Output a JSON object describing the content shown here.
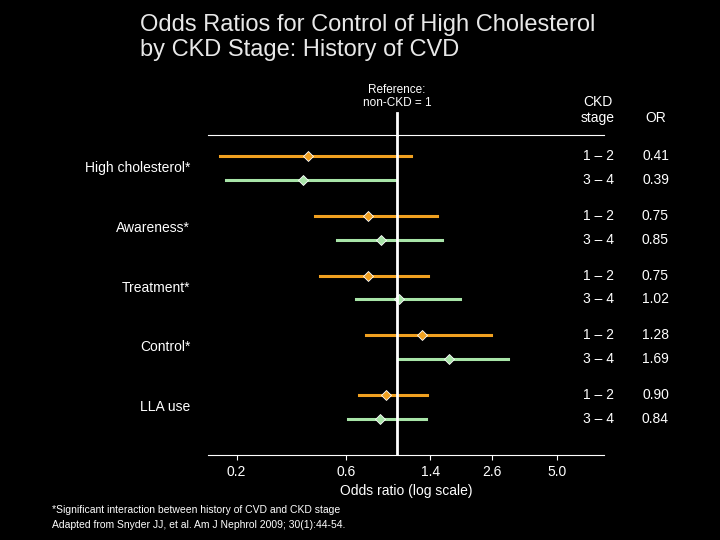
{
  "chart_data": {
    "type": "forest",
    "title": "Odds Ratios for Control of High Cholesterol\nby CKD Stage: History of CVD",
    "x_label": "Odds ratio (log scale)",
    "log": "x",
    "xlim": [
      0.15,
      8.0
    ],
    "xticks": [
      0.2,
      0.6,
      1.4,
      2.6,
      {
        "value": 5.0,
        "label": "5.0"
      }
    ],
    "reference": {
      "value": 1,
      "label": "Reference:\nnon-CKD = 1"
    },
    "column_headers": [
      "CKD\nstage",
      "OR"
    ],
    "categories": [
      "High cholesterol*",
      "Awareness*",
      "Treatment*",
      "Control*",
      "LLA use"
    ],
    "series": [
      {
        "name": "1 – 2",
        "color": "#f0a020",
        "values": [
          0.41,
          0.75,
          0.75,
          1.28,
          0.9
        ],
        "ci_low": [
          0.17,
          0.44,
          0.46,
          0.73,
          0.68
        ],
        "ci_high": [
          1.15,
          1.49,
          1.36,
          2.57,
          1.35
        ],
        "value_labels": [
          "0.41",
          "0.75",
          "0.75",
          "1.28",
          "0.90"
        ]
      },
      {
        "name": "3 – 4",
        "color": "#a8e4a8",
        "values": [
          0.39,
          0.85,
          1.02,
          1.69,
          0.84
        ],
        "ci_low": [
          0.18,
          0.55,
          0.66,
          1.01,
          0.61
        ],
        "ci_high": [
          0.98,
          1.57,
          1.89,
          3.06,
          1.34
        ],
        "value_labels": [
          "0.39",
          "0.85",
          "1.02",
          "1.69",
          "0.84"
        ]
      }
    ],
    "footnotes": [
      "*Significant interaction between history of CVD and CKD stage",
      "Adapted from Snyder JJ, et al. Am J Nephrol 2009; 30(1):44-54."
    ]
  }
}
